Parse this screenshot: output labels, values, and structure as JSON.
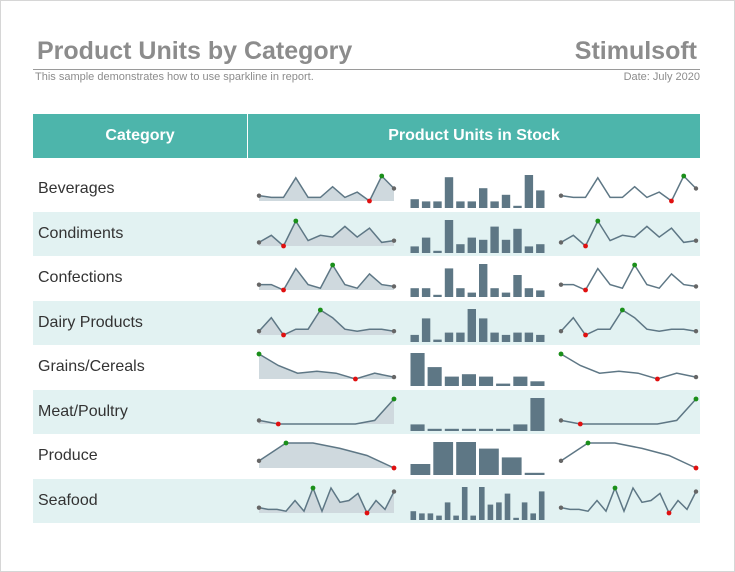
{
  "report": {
    "title": "Product Units by Category",
    "brand": "Stimulsoft",
    "subtitle": "This sample demonstrates how to use sparkline in report.",
    "date": "Date: July 2020"
  },
  "table": {
    "headers": {
      "category": "Category",
      "units": "Product Units in Stock"
    }
  },
  "colors": {
    "header_bg": "#4db5ab",
    "alt_row_bg": "#e2f2f2",
    "spark_line": "#5e7785",
    "spark_area": "#cfd9de",
    "bar": "#5e7785",
    "high_point": "#1a8f1a",
    "low_point": "#e01010",
    "end_point": "#666666"
  },
  "chart_data": {
    "type": "sparkline",
    "rows": [
      {
        "category": "Beverages",
        "values": [
          4,
          3,
          3,
          14,
          3,
          3,
          9,
          3,
          6,
          1,
          15,
          8
        ]
      },
      {
        "category": "Condiments",
        "values": [
          3,
          7,
          1,
          15,
          4,
          7,
          6,
          12,
          6,
          11,
          3,
          4
        ]
      },
      {
        "category": "Confections",
        "values": [
          4,
          4,
          1,
          13,
          4,
          2,
          15,
          4,
          2,
          10,
          4,
          3
        ]
      },
      {
        "category": "Dairy Products",
        "values": [
          3,
          10,
          1,
          4,
          4,
          14,
          10,
          4,
          3,
          4,
          4,
          3
        ]
      },
      {
        "category": "Grains/Cereals",
        "values": [
          14,
          8,
          4,
          5,
          4,
          1,
          4,
          2
        ]
      },
      {
        "category": "Meat/Poultry",
        "values": [
          3,
          1,
          1,
          1,
          1,
          1,
          3,
          15
        ]
      },
      {
        "category": "Produce",
        "values": [
          5,
          15,
          15,
          12,
          8,
          1
        ]
      },
      {
        "category": "Seafood",
        "values": [
          4,
          3,
          3,
          2,
          8,
          2,
          15,
          2,
          15,
          7,
          8,
          12,
          1,
          8,
          3,
          13
        ]
      }
    ]
  }
}
